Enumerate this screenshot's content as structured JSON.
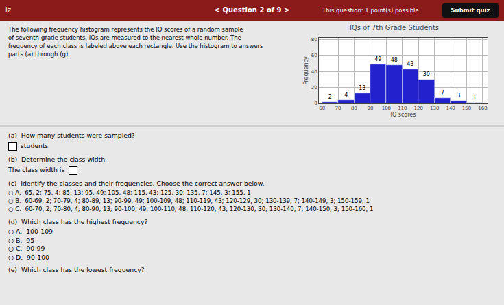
{
  "chart_data": {
    "type": "histogram",
    "title": "IQs of 7th Grade Students",
    "xlabel": "IQ scores",
    "ylabel": "Frequency",
    "bins": [
      60,
      70,
      80,
      90,
      100,
      110,
      120,
      130,
      140,
      150,
      160
    ],
    "values": [
      2,
      4,
      13,
      49,
      48,
      43,
      30,
      7,
      3,
      1
    ],
    "color": "#2222cc",
    "xlim": [
      58,
      163
    ],
    "ylim": [
      0,
      82
    ],
    "xticks": [
      60,
      70,
      80,
      90,
      100,
      110,
      120,
      130,
      140,
      150,
      160
    ],
    "yticks": [
      0,
      20,
      40,
      60,
      80
    ],
    "grid": true,
    "data_labels": true,
    "annotations": [
      "iz",
      "< Question 2 of 9 >",
      "This question: 1 point(s) possible",
      "Submit quiz",
      "The following frequency histogram represents the IQ scores of a random sample\nof seventh-grade students. IQs are measured to the nearest whole number. The\nfrequency of each class is labeled above each rectangle. Use the histogram to answers\nparts (a) through (g).",
      "(a)  How many students were sampled?",
      "students",
      "(b)  Determine the class width.",
      "The class width is",
      "(c)  Identify the classes and their frequencies. Choose the correct answer below.",
      "○ A.  65, 2; 75, 4; 85, 13; 95, 49; 105, 48; 115, 43; 125, 30; 135, 7; 145, 3; 155, 1",
      "○ B.  60-69, 2; 70-79, 4; 80-89, 13; 90-99, 49; 100-109, 48; 110-119, 43; 120-129, 30; 130-139, 7; 140-149, 3; 150-159, 1",
      "○ C.  60-70, 2; 70-80, 4; 80-90, 13; 90-100, 49; 100-110, 48; 110-120, 43; 120-130, 30; 130-140, 7; 140-150, 3; 150-160, 1",
      "(d)  Which class has the highest frequency?",
      "○ A.  100-109",
      "○ B.  95",
      "○ C.  90-99",
      "○ D.  90-100",
      "(e)  Which class has the lowest frequency?"
    ]
  }
}
